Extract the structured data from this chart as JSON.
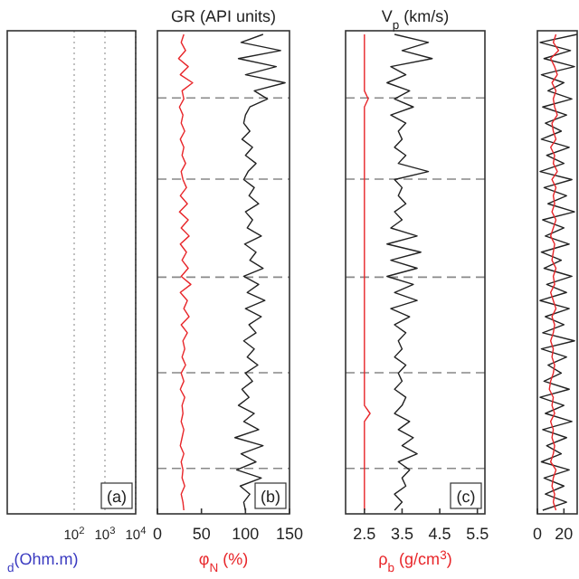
{
  "chart_data": [
    {
      "type": "other",
      "xlabel": "$_{d}$(Ohm.m)",
      "annotations": [
        "10$^{2}$",
        "10$^{3}$",
        "10$^{4}$",
        "(a)"
      ]
    },
    {
      "type": "line",
      "orientation": "horizontal",
      "title": "GR (API units)",
      "xlabel": "φ$_{N}$ (%)",
      "xlim": [
        0,
        150
      ],
      "xticks": [
        0,
        50,
        100,
        150
      ],
      "tick_labels": "x",
      "annotations": [
        "(b)"
      ],
      "line_style": "solid",
      "grid": "y",
      "categories": [
        null,
        null,
        null,
        null,
        null,
        null,
        null,
        null,
        null,
        null,
        null,
        null,
        null,
        null,
        null,
        null,
        null,
        null,
        null,
        null,
        null,
        null,
        null,
        null,
        null,
        null,
        null,
        null,
        null,
        null,
        null,
        null,
        null,
        null,
        null,
        null,
        null,
        null,
        null,
        null,
        null,
        null,
        null,
        null,
        null,
        null,
        null,
        null,
        null,
        null,
        null,
        null,
        null,
        null,
        null,
        null,
        null,
        null,
        null,
        null
      ],
      "series": [
        {
          "color": "#e8262a",
          "values": [
            30,
            27,
            32,
            24,
            35,
            26,
            40,
            28,
            30,
            25,
            29,
            27,
            31,
            26,
            30,
            28,
            32,
            27,
            29,
            33,
            26,
            34,
            25,
            35,
            27,
            36,
            26,
            33,
            28,
            35,
            27,
            38,
            26,
            34,
            30,
            36,
            27,
            34,
            29,
            31,
            28,
            32,
            27,
            30,
            26,
            31,
            28,
            29,
            27,
            30,
            28,
            26,
            30,
            27,
            29,
            28,
            31,
            27,
            29,
            30
          ]
        },
        {
          "color": "#222222",
          "values": [
            120,
            95,
            140,
            92,
            135,
            100,
            145,
            110,
            125,
            105,
            100,
            98,
            105,
            96,
            108,
            100,
            112,
            103,
            98,
            110,
            104,
            115,
            100,
            108,
            102,
            118,
            99,
            112,
            105,
            120,
            98,
            115,
            102,
            122,
            100,
            118,
            104,
            112,
            98,
            110,
            102,
            114,
            100,
            108,
            96,
            104,
            92,
            110,
            98,
            115,
            88,
            120,
            95,
            112,
            90,
            118,
            94,
            105,
            98,
            100
          ]
        }
      ]
    },
    {
      "type": "line",
      "orientation": "horizontal",
      "title": "V$_{p}$ (km/s)",
      "xlabel": "ρ$_{b}$ (g/cm$^{3}$)",
      "xlim": [
        2.0,
        5.7
      ],
      "xticks": [
        2.5,
        3.5,
        4.5,
        5.5
      ],
      "tick_labels": "x",
      "annotations": [
        "(c)"
      ],
      "line_style": "solid",
      "grid": "y",
      "categories": [
        null,
        null,
        null,
        null,
        null,
        null,
        null,
        null,
        null,
        null,
        null,
        null,
        null,
        null,
        null,
        null,
        null,
        null,
        null,
        null,
        null,
        null,
        null,
        null,
        null,
        null,
        null,
        null,
        null,
        null,
        null,
        null,
        null,
        null,
        null,
        null,
        null,
        null,
        null,
        null,
        null,
        null,
        null,
        null,
        null,
        null,
        null,
        null,
        null,
        null,
        null,
        null,
        null,
        null,
        null,
        null,
        null,
        null,
        null,
        null
      ],
      "series": [
        {
          "color": "#e8262a",
          "values": [
            2.5,
            2.5,
            2.5,
            2.5,
            2.5,
            2.5,
            2.5,
            2.5,
            2.6,
            2.5,
            2.5,
            2.5,
            2.5,
            2.5,
            2.5,
            2.5,
            2.5,
            2.5,
            2.5,
            2.5,
            2.5,
            2.5,
            2.5,
            2.5,
            2.5,
            2.5,
            2.5,
            2.5,
            2.5,
            2.5,
            2.5,
            2.5,
            2.5,
            2.5,
            2.5,
            2.5,
            2.5,
            2.5,
            2.5,
            2.5,
            2.5,
            2.5,
            2.5,
            2.5,
            2.5,
            2.5,
            2.5,
            2.65,
            2.5,
            2.5,
            2.5,
            2.5,
            2.5,
            2.5,
            2.5,
            2.5,
            2.5,
            2.5,
            2.5,
            2.5
          ]
        },
        {
          "color": "#222222",
          "values": [
            3.3,
            4.2,
            3.5,
            4.3,
            3.2,
            3.6,
            3.1,
            3.7,
            3.3,
            3.8,
            3.2,
            3.6,
            3.4,
            3.5,
            3.3,
            3.6,
            3.4,
            4.2,
            3.3,
            3.5,
            3.4,
            3.6,
            3.3,
            3.5,
            3.2,
            3.9,
            3.1,
            4.0,
            3.2,
            3.9,
            3.1,
            3.8,
            3.3,
            3.9,
            3.2,
            3.7,
            3.3,
            3.6,
            3.4,
            3.5,
            3.3,
            3.6,
            3.4,
            3.5,
            3.3,
            3.6,
            3.5,
            3.3,
            3.7,
            3.4,
            3.8,
            3.5,
            3.9,
            3.4,
            3.7,
            3.5,
            3.6,
            3.3,
            3.5,
            3.3
          ]
        }
      ]
    },
    {
      "type": "line",
      "orientation": "horizontal",
      "xlim": [
        0,
        30
      ],
      "xticks": [
        0,
        20
      ],
      "tick_labels": "x",
      "line_style": "solid",
      "categories": [
        null,
        null,
        null,
        null,
        null,
        null,
        null,
        null,
        null,
        null,
        null,
        null,
        null,
        null,
        null,
        null,
        null,
        null,
        null,
        null,
        null,
        null,
        null,
        null,
        null,
        null,
        null,
        null,
        null,
        null,
        null,
        null,
        null,
        null,
        null,
        null,
        null,
        null,
        null,
        null,
        null,
        null,
        null,
        null,
        null,
        null,
        null,
        null,
        null,
        null,
        null,
        null,
        null,
        null,
        null,
        null,
        null,
        null,
        null,
        null
      ],
      "series": [
        {
          "color": "#222222",
          "values": [
            30,
            2,
            25,
            5,
            28,
            3,
            20,
            8,
            26,
            4,
            22,
            6,
            18,
            3,
            24,
            7,
            20,
            2,
            26,
            5,
            22,
            8,
            28,
            4,
            20,
            6,
            24,
            3,
            18,
            5,
            26,
            7,
            22,
            2,
            24,
            6,
            20,
            4,
            28,
            3,
            22,
            8,
            18,
            5,
            24,
            2,
            20,
            6,
            26,
            4,
            22,
            7,
            18,
            3,
            24,
            5,
            20,
            6,
            22,
            4
          ]
        },
        {
          "color": "#e8262a",
          "values": [
            14,
            12,
            16,
            10,
            13,
            15,
            11,
            14,
            12,
            13,
            15,
            11,
            12,
            14,
            10,
            13,
            12,
            15,
            11,
            14,
            12,
            13,
            11,
            14,
            12,
            10,
            13,
            12,
            11,
            14,
            12,
            13,
            10,
            12,
            14,
            11,
            13,
            12,
            10,
            12,
            11,
            13,
            12,
            10,
            9,
            12,
            11,
            13,
            10,
            12,
            11,
            13,
            12,
            10,
            14,
            12,
            11,
            13,
            12,
            14
          ]
        }
      ]
    }
  ]
}
